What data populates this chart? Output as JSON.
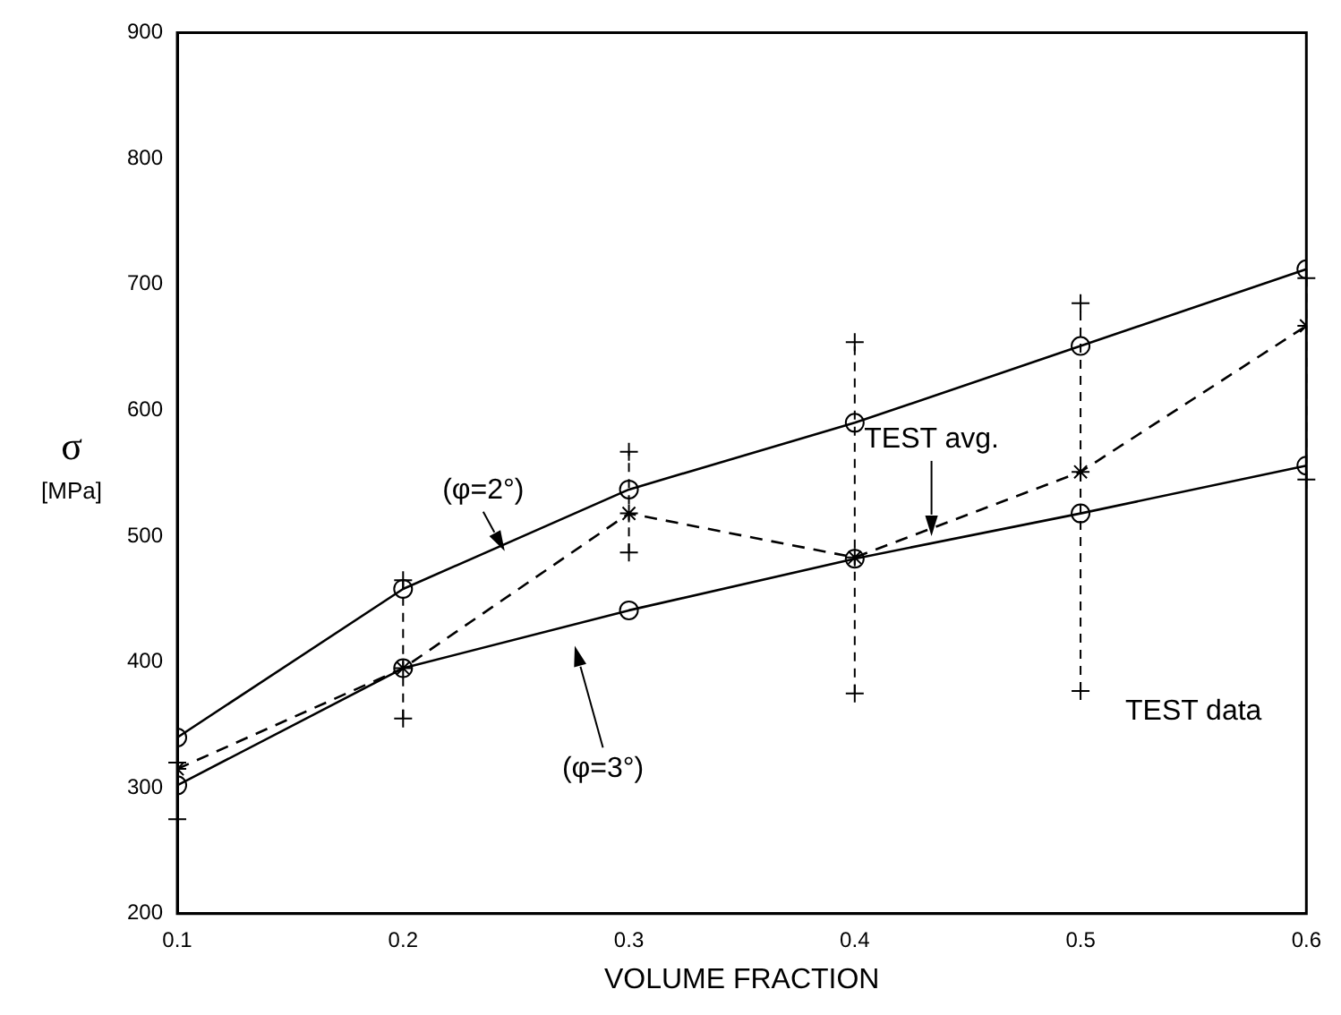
{
  "chart_data": {
    "type": "line",
    "xlabel": "VOLUME FRACTION",
    "ylabel": "σ [MPa]",
    "x": [
      0.1,
      0.2,
      0.3,
      0.4,
      0.5,
      0.6
    ],
    "series": [
      {
        "color": "#000000",
        "marker": "circle",
        "line_style": "solid",
        "values": [
          340,
          458,
          537,
          590,
          651,
          712
        ]
      },
      {
        "color": "#000000",
        "marker": "circle",
        "line_style": "solid",
        "values": [
          302,
          395,
          441,
          482,
          518,
          556
        ]
      },
      {
        "color": "#000000",
        "marker": "cross",
        "line_style": "dashed",
        "values": [
          315,
          395,
          518,
          483,
          551,
          667
        ],
        "errors": [
          [
            275,
            320
          ],
          [
            355,
            465
          ],
          [
            487,
            567
          ],
          [
            375,
            654
          ],
          [
            377,
            685
          ],
          [
            545,
            705
          ]
        ]
      }
    ],
    "annotations": [
      {
        "text": "(φ=2°)",
        "x": 0.245,
        "y": 488
      },
      "(φ=3°)",
      {
        "text": "TEST avg.",
        "x": 0.434,
        "y": 500
      },
      "TEST data"
    ],
    "xlim": [
      0.1,
      0.6
    ],
    "xticks": [
      0.1,
      0.2,
      0.3,
      0.4,
      0.5,
      0.6
    ],
    "ylim": [
      200,
      900
    ],
    "yticks": [
      200,
      300,
      400,
      500,
      600,
      700,
      800,
      900
    ],
    "grid": false,
    "legend": false
  }
}
